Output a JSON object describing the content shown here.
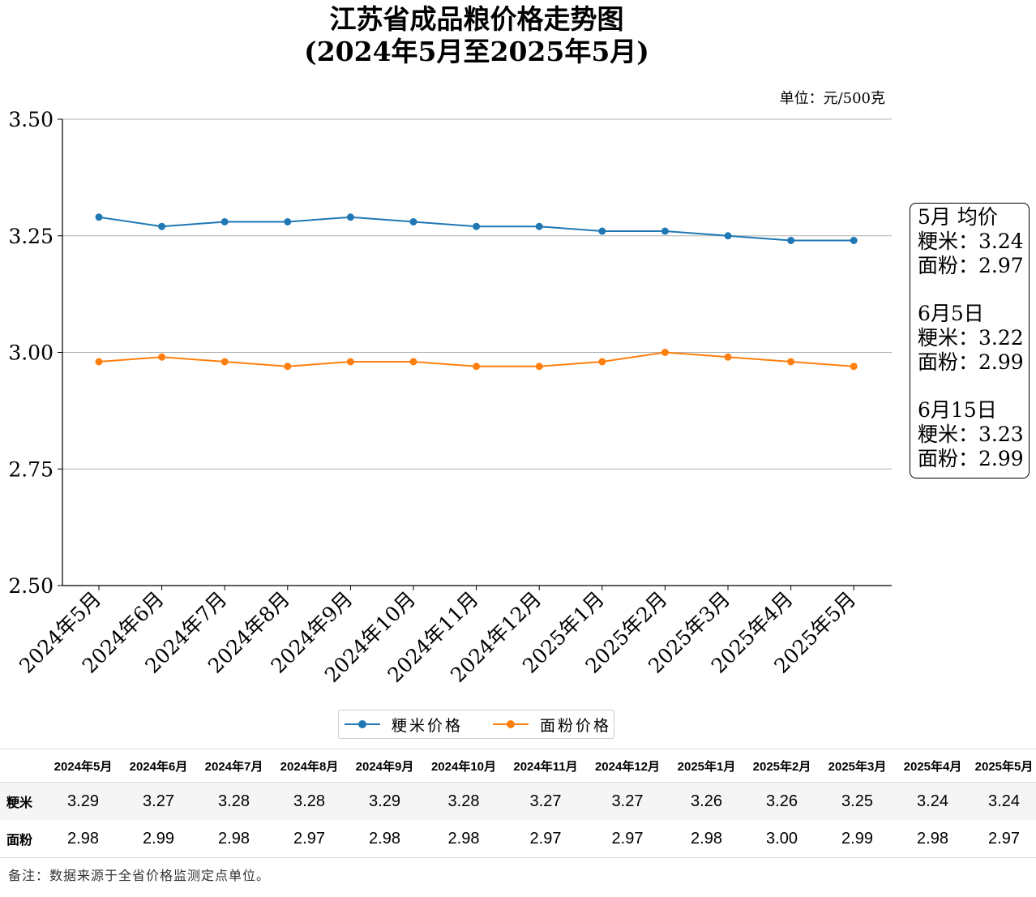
{
  "chart_data": {
    "type": "line",
    "title": "江苏省成品粮价格走势图",
    "subtitle": "(2024年5月至2025年5月)",
    "unit_label": "单位：元/500克",
    "categories": [
      "2024年5月",
      "2024年6月",
      "2024年7月",
      "2024年8月",
      "2024年9月",
      "2024年10月",
      "2024年11月",
      "2024年12月",
      "2025年1月",
      "2025年2月",
      "2025年3月",
      "2025年4月",
      "2025年5月"
    ],
    "series": [
      {
        "name": "粳米价格",
        "color": "#1f77b4",
        "values": [
          3.29,
          3.27,
          3.28,
          3.28,
          3.29,
          3.28,
          3.27,
          3.27,
          3.26,
          3.26,
          3.25,
          3.24,
          3.24
        ]
      },
      {
        "name": "面粉价格",
        "color": "#ff7f0e",
        "values": [
          2.98,
          2.99,
          2.98,
          2.97,
          2.98,
          2.98,
          2.97,
          2.97,
          2.98,
          3.0,
          2.99,
          2.98,
          2.97
        ]
      }
    ],
    "ylim": [
      2.5,
      3.5
    ],
    "yticks": [
      "2.50",
      "2.75",
      "3.00",
      "3.25",
      "3.50"
    ],
    "grid": "horizontal",
    "legend_position": "bottom-center"
  },
  "infobox": [
    {
      "heading": "5月 均价",
      "rice": "粳米：3.24",
      "flour": "面粉：2.97"
    },
    {
      "heading": "6月5日",
      "rice": "粳米：3.22",
      "flour": "面粉：2.99"
    },
    {
      "heading": "6月15日",
      "rice": "粳米：3.23",
      "flour": "面粉：2.99"
    }
  ],
  "table": {
    "headers": [
      "2024年5月",
      "2024年6月",
      "2024年7月",
      "2024年8月",
      "2024年9月",
      "2024年10月",
      "2024年11月",
      "2024年12月",
      "2025年1月",
      "2025年2月",
      "2025年3月",
      "2025年4月",
      "2025年5月"
    ],
    "rows": [
      {
        "label": "粳米",
        "values": [
          "3.29",
          "3.27",
          "3.28",
          "3.28",
          "3.29",
          "3.28",
          "3.27",
          "3.27",
          "3.26",
          "3.26",
          "3.25",
          "3.24",
          "3.24"
        ]
      },
      {
        "label": "面粉",
        "values": [
          "2.98",
          "2.99",
          "2.98",
          "2.97",
          "2.98",
          "2.98",
          "2.97",
          "2.97",
          "2.98",
          "3.00",
          "2.99",
          "2.98",
          "2.97"
        ]
      }
    ]
  },
  "footnote": "备注：数据来源于全省价格监测定点单位。"
}
